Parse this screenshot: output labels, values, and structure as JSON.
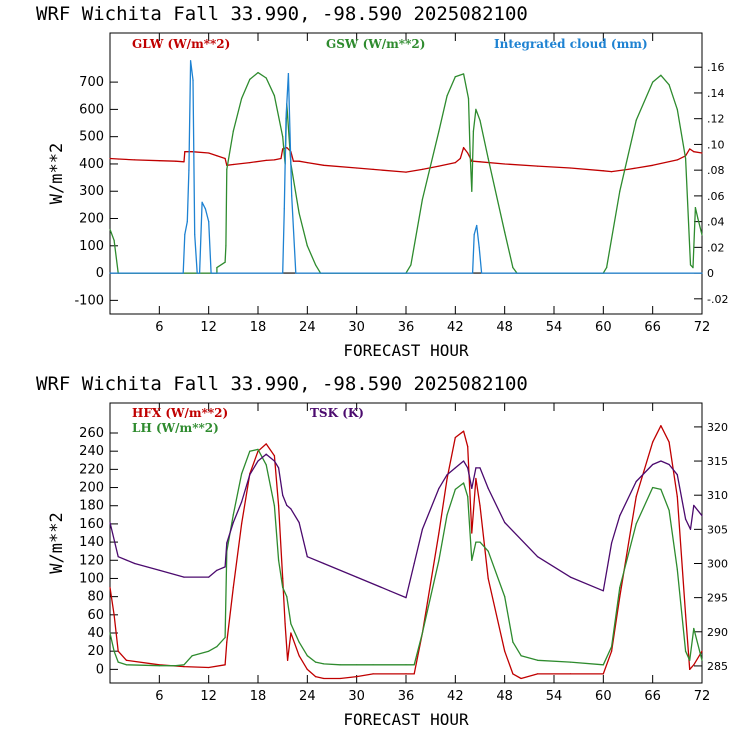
{
  "chart_data": [
    {
      "type": "line",
      "title": "WRF   Wichita Fall  33.990, -98.590  2025082100",
      "xlabel": "FORECAST HOUR",
      "ylabel": "W/m**2",
      "xlim": [
        0,
        72
      ],
      "ylim": [
        -150,
        880
      ],
      "x_ticks": [
        6,
        12,
        18,
        24,
        30,
        36,
        42,
        48,
        54,
        60,
        66,
        72
      ],
      "y_ticks": [
        -100,
        0,
        100,
        200,
        300,
        400,
        500,
        600,
        700
      ],
      "right_axis": {
        "ylim": [
          -0.0318,
          0.1866
        ],
        "ticks": [
          -0.02,
          0,
          0.02,
          0.04,
          0.06,
          0.08,
          0.1,
          0.12,
          0.14,
          0.16
        ],
        "tick_labels": [
          "-.02",
          "0",
          ".02",
          ".04",
          ".06",
          ".08",
          ".10",
          ".12",
          ".14",
          ".16"
        ]
      },
      "series": [
        {
          "name": "GLW (W/m**2)",
          "color": "#c00000",
          "axis": "left",
          "x": [
            0,
            1,
            3,
            6,
            8,
            9,
            9.1,
            10,
            12,
            13,
            14,
            14.2,
            15,
            17,
            19,
            20,
            20.8,
            21,
            21.5,
            22,
            22.3,
            23,
            24,
            26,
            30,
            32,
            36,
            38,
            40,
            42,
            42.6,
            43,
            43.5,
            44,
            44.1,
            45,
            48,
            52,
            56,
            60,
            61,
            63,
            66,
            69,
            70,
            70.5,
            71,
            72
          ],
          "y": [
            420,
            418,
            415,
            412,
            410,
            408,
            445,
            445,
            440,
            430,
            420,
            395,
            398,
            405,
            413,
            415,
            420,
            455,
            460,
            445,
            410,
            410,
            405,
            395,
            385,
            380,
            370,
            380,
            392,
            405,
            420,
            460,
            440,
            410,
            410,
            408,
            400,
            392,
            385,
            375,
            372,
            380,
            395,
            415,
            430,
            455,
            445,
            440
          ]
        },
        {
          "name": "GSW (W/m**2)",
          "color": "#2e8b2e",
          "axis": "left",
          "x": [
            0,
            0.5,
            1,
            1,
            13,
            13,
            14,
            14.1,
            14.2,
            15,
            16,
            17,
            18,
            19,
            20,
            21,
            21.3,
            21.5,
            22,
            23,
            24,
            25,
            25.6,
            36,
            36.6,
            38,
            40,
            41,
            42,
            43,
            43.6,
            43.8,
            44,
            44.2,
            44.5,
            45,
            46,
            48,
            49,
            49.5,
            60,
            60.4,
            62,
            64,
            66,
            67,
            68,
            69,
            70,
            70.6,
            70.9,
            71.2,
            71.5,
            72
          ],
          "y": [
            160,
            120,
            0,
            0,
            0,
            20,
            40,
            100,
            380,
            520,
            640,
            710,
            735,
            715,
            650,
            500,
            400,
            620,
            400,
            220,
            100,
            30,
            0,
            0,
            30,
            270,
            520,
            650,
            720,
            730,
            640,
            440,
            300,
            520,
            600,
            560,
            420,
            150,
            20,
            0,
            0,
            20,
            300,
            560,
            700,
            725,
            690,
            600,
            420,
            30,
            20,
            240,
            200,
            140
          ]
        },
        {
          "name": "Integrated cloud (mm)",
          "color": "#1e82d2",
          "axis": "right",
          "x": [
            0,
            8.9,
            9.1,
            9.4,
            9.6,
            9.8,
            10.1,
            10.3,
            10.6,
            10.9,
            11.2,
            11.6,
            12,
            12.3,
            21,
            21.2,
            21.4,
            21.7,
            22.1,
            22.6,
            44.1,
            44.3,
            44.6,
            44.9,
            45.2,
            72
          ],
          "y": [
            0,
            0,
            0.03,
            0.04,
            0.08,
            0.165,
            0.15,
            0.03,
            0,
            0,
            0.055,
            0.05,
            0.04,
            0,
            0,
            0.05,
            0.12,
            0.155,
            0.06,
            0,
            0,
            0.03,
            0.037,
            0.02,
            0,
            0
          ]
        }
      ]
    },
    {
      "type": "line",
      "title": "WRF   Wichita Fall  33.990, -98.590  2025082100",
      "xlabel": "FORECAST HOUR",
      "ylabel": "W/m**2",
      "xlim": [
        0,
        72
      ],
      "ylim": [
        -15,
        293
      ],
      "x_ticks": [
        6,
        12,
        18,
        24,
        30,
        36,
        42,
        48,
        54,
        60,
        66,
        72
      ],
      "y_ticks": [
        0,
        20,
        40,
        60,
        80,
        100,
        120,
        140,
        160,
        180,
        200,
        220,
        240,
        260
      ],
      "right_axis": {
        "ylim": [
          282.5,
          323.5
        ],
        "ticks": [
          285,
          290,
          295,
          300,
          305,
          310,
          315,
          320
        ],
        "tick_labels": [
          "285",
          "290",
          "295",
          "300",
          "305",
          "310",
          "315",
          "320"
        ]
      },
      "series": [
        {
          "name": "HFX (W/m**2)",
          "color": "#c00000",
          "axis": "left",
          "x": [
            0,
            0.5,
            1,
            2,
            6,
            9,
            12,
            14,
            14.2,
            15,
            16,
            17,
            18,
            19,
            20,
            20.5,
            21,
            21.3,
            21.6,
            22,
            23,
            24,
            25,
            26,
            28,
            30,
            32,
            36,
            37,
            38,
            40,
            41,
            42,
            43,
            43.5,
            44,
            44.5,
            45,
            46,
            48,
            49,
            50,
            52,
            56,
            60,
            61,
            62,
            64,
            66,
            67,
            68,
            69,
            70,
            70.5,
            71,
            72
          ],
          "y": [
            90,
            60,
            20,
            10,
            5,
            3,
            2,
            5,
            30,
            90,
            160,
            215,
            240,
            248,
            235,
            180,
            100,
            50,
            10,
            40,
            15,
            0,
            -8,
            -10,
            -10,
            -8,
            -5,
            -5,
            -5,
            40,
            150,
            210,
            255,
            262,
            245,
            150,
            210,
            180,
            100,
            20,
            -5,
            -10,
            -5,
            -5,
            -5,
            20,
            80,
            190,
            250,
            268,
            250,
            190,
            60,
            0,
            5,
            20
          ]
        },
        {
          "name": "LH (W/m**2)",
          "color": "#2e8b2e",
          "axis": "left",
          "x": [
            0,
            0.5,
            1,
            2,
            6,
            8,
            9,
            10,
            12,
            13,
            14,
            14.2,
            15,
            16,
            17,
            18,
            19,
            20,
            20.5,
            21,
            21.5,
            22,
            23,
            24,
            25,
            26,
            28,
            30,
            32,
            36,
            37,
            38,
            40,
            41,
            42,
            43,
            43.5,
            44,
            44.5,
            45,
            46,
            48,
            49,
            50,
            52,
            56,
            60,
            61,
            62,
            64,
            66,
            67,
            68,
            69,
            70,
            70.5,
            71,
            72
          ],
          "y": [
            40,
            20,
            8,
            5,
            4,
            4,
            5,
            15,
            20,
            25,
            35,
            130,
            170,
            215,
            240,
            242,
            225,
            180,
            120,
            90,
            80,
            50,
            30,
            15,
            8,
            6,
            5,
            5,
            5,
            5,
            5,
            40,
            120,
            170,
            198,
            205,
            190,
            120,
            140,
            140,
            130,
            80,
            30,
            15,
            10,
            8,
            5,
            25,
            90,
            160,
            200,
            198,
            175,
            110,
            20,
            10,
            45,
            10
          ]
        },
        {
          "name": "TSK (K)",
          "color": "#4b0a6e",
          "axis": "right",
          "x": [
            0,
            1,
            3,
            6,
            9,
            12,
            13,
            14,
            14.2,
            15,
            16,
            17,
            18,
            19,
            20,
            20.5,
            21,
            21.5,
            22,
            23,
            24,
            26,
            30,
            34,
            36,
            37,
            38,
            40,
            41,
            42,
            43,
            43.5,
            44,
            44.5,
            45,
            46,
            48,
            52,
            56,
            60,
            61,
            62,
            64,
            66,
            67,
            68,
            69,
            70,
            70.6,
            71,
            72
          ],
          "y": [
            306,
            301,
            300,
            299,
            298,
            298,
            299,
            299.5,
            303,
            306,
            309,
            313,
            315,
            316,
            315,
            314,
            310,
            308.5,
            308,
            306,
            301,
            300,
            298,
            296,
            295,
            300,
            305,
            311,
            313,
            314,
            315,
            314,
            311,
            314,
            314,
            311,
            306,
            301,
            298,
            296,
            303,
            307,
            312,
            314.5,
            315,
            314.5,
            313,
            306.5,
            305,
            308.5,
            307
          ]
        }
      ]
    }
  ]
}
